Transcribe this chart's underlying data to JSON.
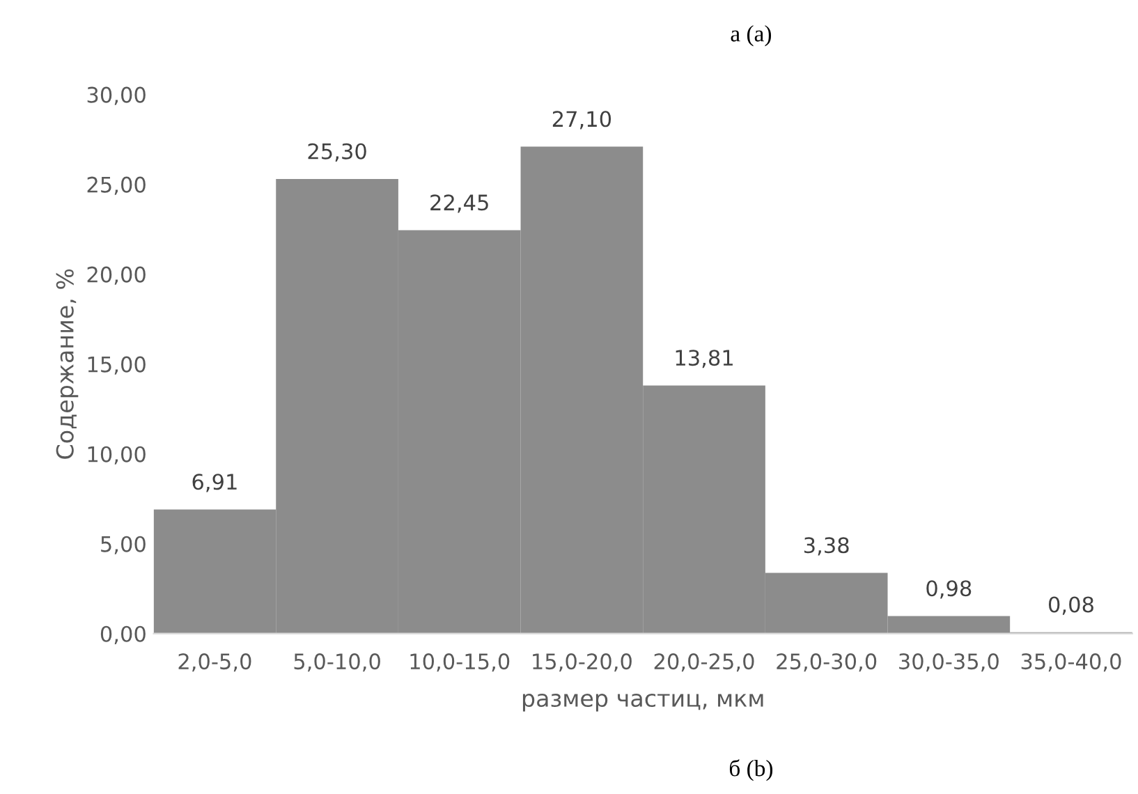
{
  "chart_data": {
    "type": "bar",
    "title": "а (а)",
    "xlabel": "размер частиц, мкм",
    "ylabel": "Содержание, %",
    "categories": [
      "2,0-5,0",
      "5,0-10,0",
      "10,0-15,0",
      "15,0-20,0",
      "20,0-25,0",
      "25,0-30,0",
      "30,0-35,0",
      "35,0-40,0"
    ],
    "values": [
      6.91,
      25.3,
      22.45,
      27.1,
      13.81,
      3.38,
      0.98,
      0.08
    ],
    "value_labels": [
      "6,91",
      "25,30",
      "22,45",
      "27,10",
      "13,81",
      "3,38",
      "0,98",
      "0,08"
    ],
    "color": "#8c8c8c",
    "ylim": [
      0,
      30
    ],
    "yticks": [
      {
        "value": 0,
        "label": "0,00"
      },
      {
        "value": 5,
        "label": "5,00"
      },
      {
        "value": 10,
        "label": "10,00"
      },
      {
        "value": 15,
        "label": "15,00"
      },
      {
        "value": 20,
        "label": "20,00"
      },
      {
        "value": 25,
        "label": "25,00"
      },
      {
        "value": 30,
        "label": "30,00"
      }
    ],
    "grid": false,
    "legend": false,
    "annotations": [
      "б (b)"
    ]
  }
}
